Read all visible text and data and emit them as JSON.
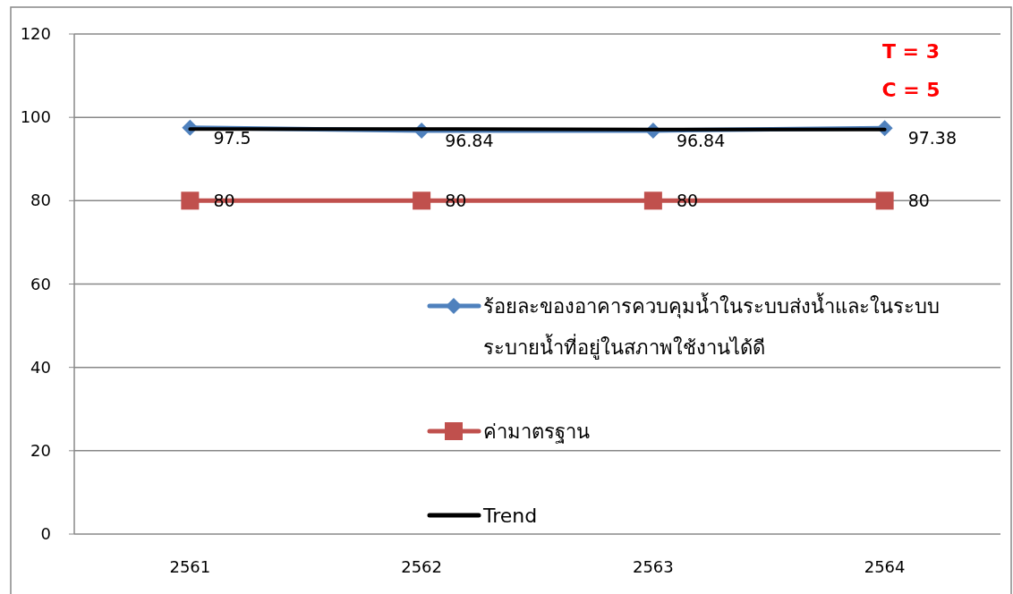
{
  "chart_data": {
    "type": "line",
    "categories": [
      "2561",
      "2562",
      "2563",
      "2564"
    ],
    "ylim": [
      0,
      120
    ],
    "yticks": [
      0,
      20,
      40,
      60,
      80,
      100,
      120
    ],
    "grid": "y",
    "legend": "right",
    "annotations": [
      "T = 3",
      "C = 5"
    ],
    "series": [
      {
        "name": "ร้อยละของอาคารควบคุมน้ำในระบบส่งน้ำและในระบบระบายน้ำที่อยู่ในสภาพใช้งานได้ดี",
        "color": "#4f81bd",
        "marker": "diamond",
        "values": [
          97.5,
          96.84,
          96.84,
          97.38
        ],
        "value_labels": [
          "97.5",
          "96.84",
          "96.84",
          "97.38"
        ]
      },
      {
        "name": "ค่ามาตรฐาน",
        "color": "#c0504d",
        "marker": "square",
        "values": [
          80,
          80,
          80,
          80
        ],
        "value_labels": [
          "80",
          "80",
          "80",
          "80"
        ]
      },
      {
        "name": "Trend",
        "color": "#000000",
        "marker": "none",
        "values": [
          97.2,
          97.2,
          97.1,
          97.1
        ]
      }
    ]
  }
}
